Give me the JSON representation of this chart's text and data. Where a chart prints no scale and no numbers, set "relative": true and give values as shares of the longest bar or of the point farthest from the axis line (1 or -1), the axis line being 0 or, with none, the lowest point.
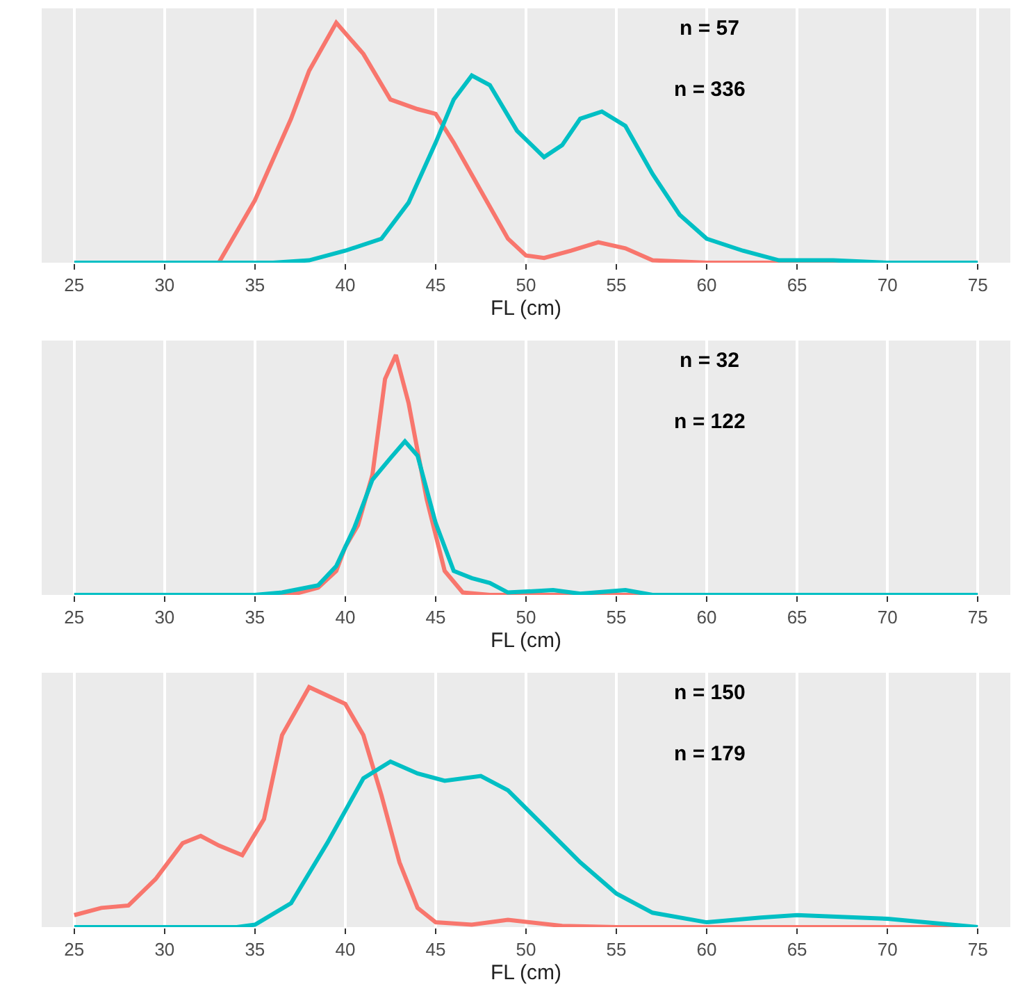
{
  "chart_data": [
    {
      "type": "line",
      "relative": true,
      "xlabel": "FL (cm)",
      "xlim": [
        23.2,
        76.8
      ],
      "xticks": [
        25,
        30,
        35,
        40,
        45,
        50,
        55,
        60,
        65,
        70,
        75
      ],
      "grid": "x",
      "annotations": [
        "n = 57",
        "n = 336"
      ],
      "series": [
        {
          "color": "#f8766d",
          "x": [
            25,
            30,
            33,
            35,
            37,
            38,
            39.5,
            41,
            42.5,
            44,
            45,
            46,
            47.5,
            49,
            50,
            51,
            52.5,
            54,
            55.5,
            57,
            60,
            75
          ],
          "values": [
            0,
            0,
            0,
            0.26,
            0.6,
            0.8,
            1,
            0.87,
            0.68,
            0.64,
            0.62,
            0.5,
            0.3,
            0.1,
            0.03,
            0.02,
            0.05,
            0.085,
            0.06,
            0.01,
            0,
            0
          ]
        },
        {
          "color": "#00bfc4",
          "x": [
            25,
            36,
            38,
            40,
            42,
            43.5,
            45,
            46,
            47,
            48,
            49.5,
            51,
            52,
            53,
            54.2,
            55.5,
            57,
            58.5,
            60,
            62,
            64,
            67,
            70,
            75
          ],
          "values": [
            0,
            0,
            0.01,
            0.05,
            0.1,
            0.25,
            0.5,
            0.68,
            0.78,
            0.74,
            0.55,
            0.44,
            0.49,
            0.6,
            0.63,
            0.57,
            0.37,
            0.2,
            0.1,
            0.05,
            0.01,
            0.01,
            0,
            0
          ]
        }
      ]
    },
    {
      "type": "line",
      "relative": true,
      "xlabel": "FL (cm)",
      "xlim": [
        23.2,
        76.8
      ],
      "xticks": [
        25,
        30,
        35,
        40,
        45,
        50,
        55,
        60,
        65,
        70,
        75
      ],
      "grid": "x",
      "annotations": [
        "n = 32",
        "n = 122"
      ],
      "series": [
        {
          "color": "#f8766d",
          "x": [
            25,
            37,
            38.5,
            39.5,
            40,
            40.7,
            41.5,
            42.2,
            42.8,
            43.5,
            44.5,
            45.5,
            46.5,
            48,
            75
          ],
          "values": [
            0,
            0,
            0.03,
            0.1,
            0.2,
            0.29,
            0.5,
            0.9,
            1,
            0.8,
            0.4,
            0.1,
            0.01,
            0,
            0
          ]
        },
        {
          "color": "#00bfc4",
          "x": [
            25,
            35,
            36.5,
            38.5,
            39.5,
            40.5,
            41.5,
            42.5,
            43.3,
            44,
            45,
            46,
            47,
            48,
            49,
            51.5,
            53,
            55.5,
            57,
            75
          ],
          "values": [
            0,
            0,
            0.01,
            0.04,
            0.12,
            0.28,
            0.48,
            0.57,
            0.64,
            0.58,
            0.3,
            0.1,
            0.07,
            0.05,
            0.01,
            0.02,
            0.005,
            0.02,
            0,
            0
          ]
        }
      ]
    },
    {
      "type": "line",
      "relative": true,
      "xlabel": "FL (cm)",
      "xlim": [
        23.2,
        76.8
      ],
      "xticks": [
        25,
        30,
        35,
        40,
        45,
        50,
        55,
        60,
        65,
        70,
        75
      ],
      "grid": "x",
      "annotations": [
        "n = 150",
        "n = 179"
      ],
      "series": [
        {
          "color": "#f8766d",
          "x": [
            25,
            26.5,
            28,
            29.5,
            31,
            32,
            33,
            34.3,
            35.5,
            36.5,
            38,
            40,
            41,
            42,
            43,
            44,
            45,
            47,
            49,
            52,
            55,
            75
          ],
          "values": [
            0.05,
            0.08,
            0.09,
            0.2,
            0.35,
            0.38,
            0.34,
            0.3,
            0.45,
            0.8,
            1,
            0.93,
            0.8,
            0.55,
            0.27,
            0.08,
            0.02,
            0.01,
            0.03,
            0.005,
            0,
            0
          ]
        },
        {
          "color": "#00bfc4",
          "x": [
            25,
            34,
            35,
            37,
            39,
            41,
            42.5,
            44,
            45.5,
            47.5,
            49,
            51,
            53,
            55,
            57,
            60,
            63,
            65,
            70,
            75
          ],
          "values": [
            0,
            0,
            0.01,
            0.1,
            0.35,
            0.62,
            0.69,
            0.64,
            0.61,
            0.63,
            0.57,
            0.42,
            0.27,
            0.14,
            0.06,
            0.02,
            0.04,
            0.05,
            0.035,
            0
          ]
        }
      ]
    }
  ]
}
